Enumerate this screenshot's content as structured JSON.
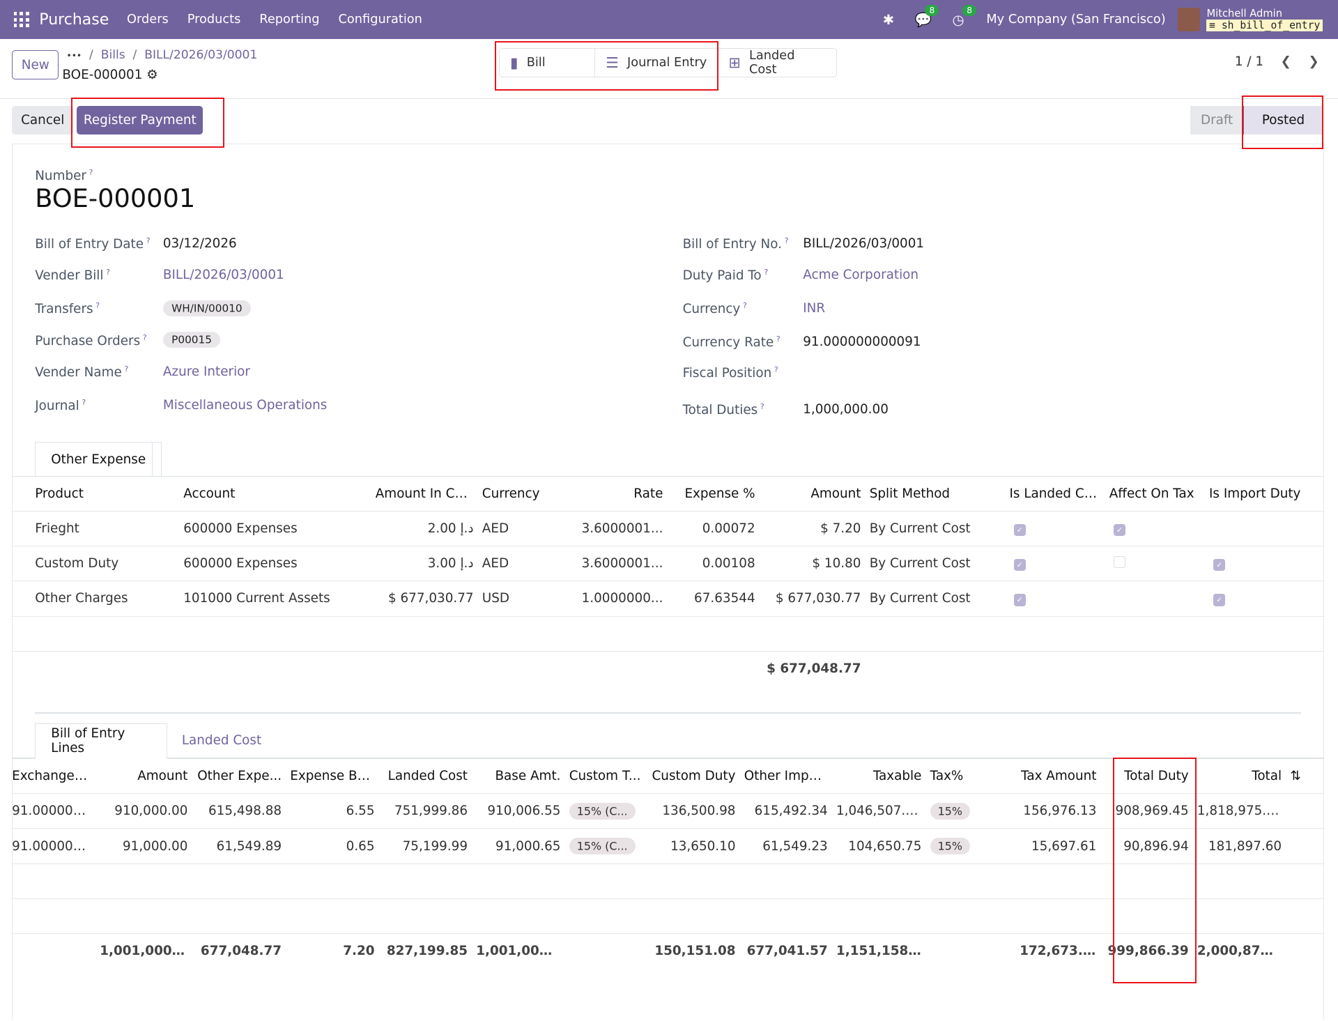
{
  "navbar": {
    "app": "Purchase",
    "menus": [
      "Orders",
      "Products",
      "Reporting",
      "Configuration"
    ],
    "messages_count": "8",
    "activities_count": "8",
    "company": "My Company (San Francisco)",
    "user": "Mitchell Admin",
    "database": "sh_bill_of_entry"
  },
  "control": {
    "new_label": "New",
    "breadcrumb_more": "•••",
    "breadcrumb": [
      "Bills",
      "BILL/2026/03/0001"
    ],
    "record": "BOE-000001",
    "smart_buttons": [
      "Bill",
      "Journal Entry",
      "Landed Cost"
    ],
    "pager": "1 / 1"
  },
  "status_bar": {
    "cancel": "Cancel",
    "register_payment": "Register Payment",
    "stages": [
      "Draft",
      "Posted"
    ],
    "current": "Posted"
  },
  "form": {
    "number_label": "Number",
    "number": "BOE-000001",
    "left": [
      {
        "label": "Bill of Entry Date",
        "value": "03/12/2026"
      },
      {
        "label": "Vender Bill",
        "value": "BILL/2026/03/0001"
      },
      {
        "label": "Transfers",
        "value": "WH/IN/00010"
      },
      {
        "label": "Purchase Orders",
        "value": "P00015"
      },
      {
        "label": "Vender Name",
        "value": "Azure Interior"
      },
      {
        "label": "Journal",
        "value": "Miscellaneous Operations"
      }
    ],
    "right": [
      {
        "label": "Bill of Entry No.",
        "value": "BILL/2026/03/0001"
      },
      {
        "label": "Duty Paid To",
        "value": "Acme Corporation"
      },
      {
        "label": "Currency",
        "value": "INR"
      },
      {
        "label": "Currency Rate",
        "value": "91.000000000091"
      },
      {
        "label": "Fiscal Position",
        "value": ""
      },
      {
        "label": "Total Duties",
        "value": "1,000,000.00"
      }
    ]
  },
  "expense": {
    "tab": "Other Expense",
    "columns": [
      "Product",
      "Account",
      "Amount In Cu...",
      "Currency",
      "Rate",
      "Expense %",
      "Amount",
      "Split Method",
      "Is Landed Cost",
      "Affect On Tax",
      "Is Import Duty"
    ],
    "rows": [
      [
        "Frieght",
        "600000 Expenses",
        "2.00 د.إ",
        "AED",
        "3.6000001...",
        "0.00072",
        "$ 7.20",
        "By Current Cost",
        true,
        true,
        false
      ],
      [
        "Custom Duty",
        "600000 Expenses",
        "3.00 د.إ",
        "AED",
        "3.6000001...",
        "0.00108",
        "$ 10.80",
        "By Current Cost",
        true,
        "empty",
        true
      ],
      [
        "Other Charges",
        "101000 Current Assets",
        "$ 677,030.77",
        "USD",
        "1.0000000...",
        "67.63544",
        "$ 677,030.77",
        "By Current Cost",
        true,
        false,
        true
      ]
    ],
    "total": "$ 677,048.77"
  },
  "lines": {
    "tabs": [
      "Bill of Entry Lines",
      "Landed Cost"
    ],
    "columns": [
      "Exchange R...",
      "Amount",
      "Other Expe...",
      "Expense Be...",
      "Landed Cost",
      "Base Amt.",
      "Custom T...",
      "Custom Duty",
      "Other Impor...",
      "Taxable",
      "Tax%",
      "Tax Amount",
      "Total Duty",
      "Total"
    ],
    "rows": [
      [
        "91.000000...",
        "910,000.00",
        "615,498.88",
        "6.55",
        "751,999.86",
        "910,006.55",
        "15% (C...",
        "136,500.98",
        "615,492.34",
        "1,046,507.53",
        "15%",
        "156,976.13",
        "908,969.45",
        "1,818,975.99"
      ],
      [
        "91.000000...",
        "91,000.00",
        "61,549.89",
        "0.65",
        "75,199.99",
        "91,000.65",
        "15% (C...",
        "13,650.10",
        "61,549.23",
        "104,650.75",
        "15%",
        "15,697.61",
        "90,896.94",
        "181,897.60"
      ]
    ],
    "totals": [
      "",
      "1,001,000....",
      "677,048.77",
      "7.20",
      "827,199.85",
      "1,001,007....",
      "",
      "150,151.08",
      "677,041.57",
      "1,151,158....",
      "",
      "172,673.74",
      "999,866.39",
      "2,000,873...."
    ]
  },
  "colors": {
    "brand": "#71639e",
    "highlight": "#e8141a"
  }
}
